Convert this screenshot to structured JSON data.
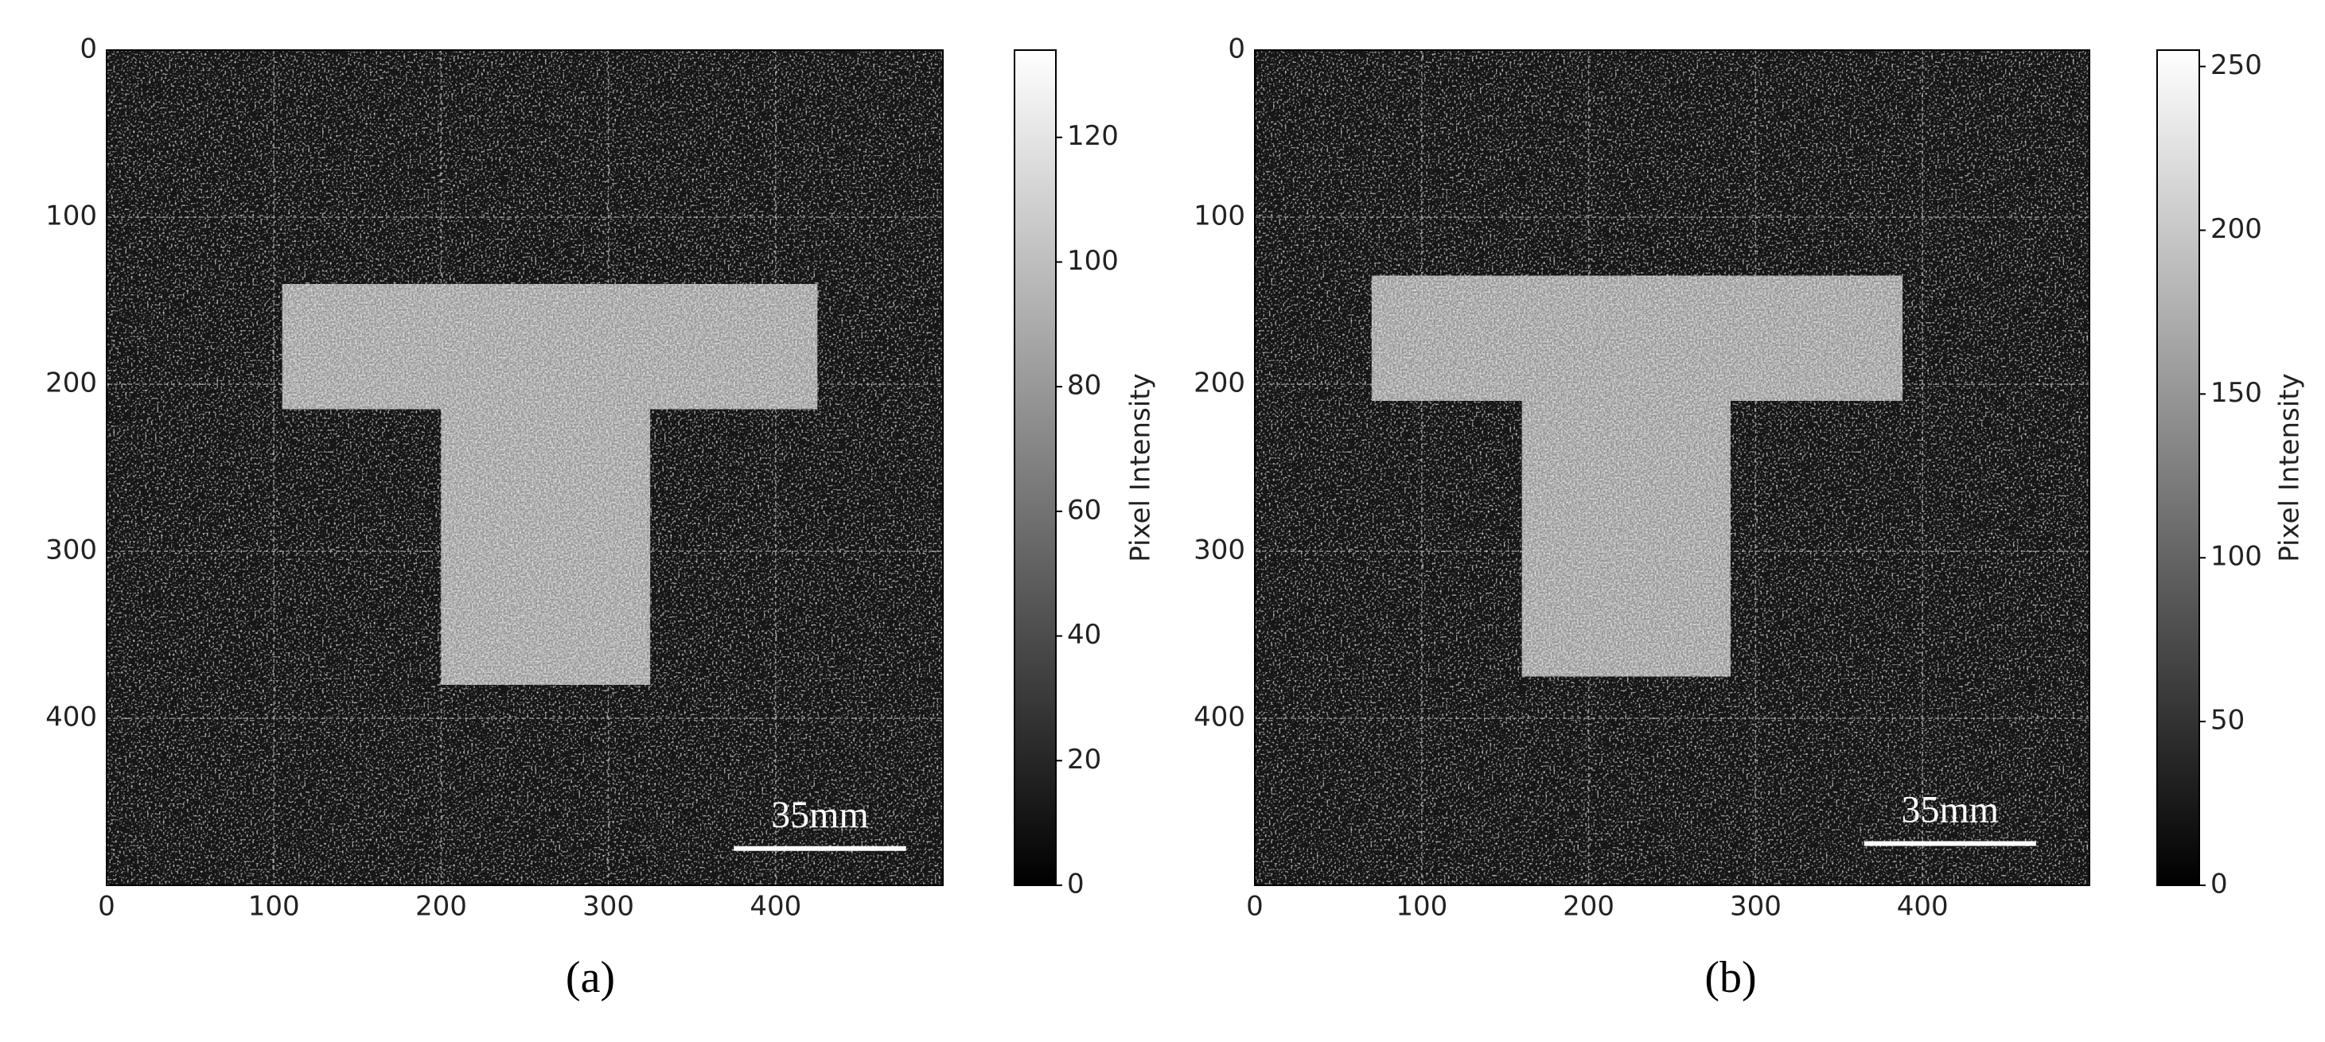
{
  "chart_data": [
    {
      "type": "image",
      "label": "(a)",
      "colormap": "gray",
      "grid": true,
      "xlim": [
        0,
        500
      ],
      "ylim": [
        500,
        0
      ],
      "xticks": [
        0,
        100,
        200,
        300,
        400
      ],
      "yticks": [
        0,
        100,
        200,
        300,
        400
      ],
      "background": 10,
      "regions": [
        {
          "x": [
            105,
            425
          ],
          "y": [
            140,
            215
          ],
          "value": 80
        },
        {
          "x": [
            200,
            325
          ],
          "y": [
            215,
            380
          ],
          "value": 80
        }
      ],
      "scale_bar": {
        "label": "35mm",
        "x": [
          375,
          478
        ],
        "y": 478
      },
      "colorbar": {
        "label": "Pixel Intensity",
        "lim": [
          0,
          134
        ],
        "ticks": [
          0,
          20,
          40,
          60,
          80,
          100,
          120
        ]
      }
    },
    {
      "type": "image",
      "label": "(b)",
      "colormap": "gray",
      "grid": true,
      "xlim": [
        0,
        500
      ],
      "ylim": [
        500,
        0
      ],
      "xticks": [
        0,
        100,
        200,
        300,
        400
      ],
      "yticks": [
        0,
        100,
        200,
        300,
        400
      ],
      "background": 18,
      "regions": [
        {
          "x": [
            70,
            388
          ],
          "y": [
            135,
            210
          ],
          "value": 150
        },
        {
          "x": [
            160,
            285
          ],
          "y": [
            210,
            375
          ],
          "value": 150
        }
      ],
      "scale_bar": {
        "label": "35mm",
        "x": [
          365,
          468
        ],
        "y": 475
      },
      "colorbar": {
        "label": "Pixel Intensity",
        "lim": [
          0,
          255
        ],
        "ticks": [
          0,
          50,
          100,
          150,
          200,
          250
        ]
      }
    }
  ]
}
